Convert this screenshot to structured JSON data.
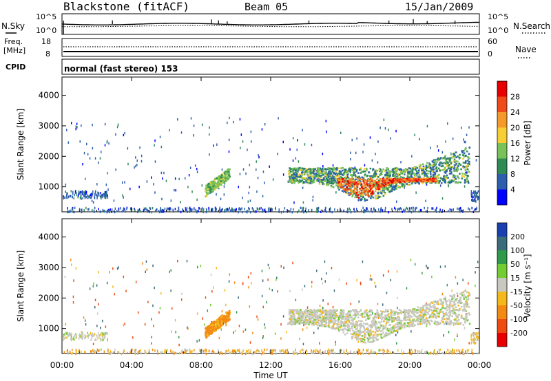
{
  "header": {
    "station": "Blackstone (fitACF)",
    "beam": "Beam 05",
    "date": "15/Jan/2009"
  },
  "strip_labels": {
    "nsky": "N.Sky",
    "nsky_top": "10^5",
    "nsky_bottom": "10^0",
    "nsearch": "N.Search",
    "nsearch_top": "10^5",
    "nsearch_bottom": "10^0",
    "freq_line1": "Freq.",
    "freq_line2": "[MHz]",
    "freq_top": "18",
    "freq_bottom": "8",
    "nave": "Nave",
    "nave_top": "60",
    "nave_bottom": "0",
    "cpid": "CPID",
    "program": "normal (fast stereo) 153"
  },
  "chart_data": [
    {
      "type": "heatmap",
      "parameter": "power",
      "ylabel": "Slant Range [km]",
      "xlabel": "",
      "x_tick_labels": [
        "00:00",
        "04:00",
        "08:00",
        "12:00",
        "16:00",
        "20:00",
        "00:00"
      ],
      "x_ticks_hours": [
        0,
        4,
        8,
        12,
        16,
        20,
        24
      ],
      "y_tick_labels": [
        "1000",
        "2000",
        "3000",
        "4000"
      ],
      "y_ticks": [
        1000,
        2000,
        3000,
        4000
      ],
      "ylim": [
        180,
        4600
      ],
      "xlim_hours": [
        0,
        24
      ],
      "colorbar": {
        "label": "Power [dB]",
        "tick_labels": [
          "4",
          "8",
          "12",
          "16",
          "20",
          "24",
          "28"
        ],
        "colors": [
          "#0000ff",
          "#2d5fae",
          "#2f8a56",
          "#79c25a",
          "#f7cf35",
          "#f49a2a",
          "#f04a1a",
          "#e60000"
        ]
      },
      "echo_regions": [
        {
          "name": "scattered ionospheric scatter",
          "t_start": 0.0,
          "t_end": 23.9,
          "r_start": 500,
          "r_end": 3300,
          "power_db": 6
        },
        {
          "name": "near-range band",
          "t_start": 0.0,
          "t_end": 24.0,
          "r_start": 200,
          "r_end": 350,
          "power_db": 6
        },
        {
          "name": "early range band",
          "t_start": 0.0,
          "t_end": 2.6,
          "r_start": 650,
          "r_end": 900,
          "power_db": 6
        },
        {
          "name": "08 UT echo",
          "t_start": 8.2,
          "t_end": 9.6,
          "r_start": 700,
          "r_end": 1500,
          "power_db": 14
        },
        {
          "name": "main evening echo",
          "t_start": 13.0,
          "t_end": 23.4,
          "r_start": 500,
          "r_end": 2300,
          "power_db": 18
        },
        {
          "name": "main echo core",
          "t_start": 15.8,
          "t_end": 21.5,
          "r_start": 650,
          "r_end": 1300,
          "power_db": 26
        },
        {
          "name": "late echo",
          "t_start": 23.5,
          "t_end": 24.0,
          "r_start": 550,
          "r_end": 900,
          "power_db": 6
        }
      ]
    },
    {
      "type": "heatmap",
      "parameter": "velocity",
      "ylabel": "Slant Range [km]",
      "xlabel": "Time UT",
      "x_tick_labels": [
        "00:00",
        "04:00",
        "08:00",
        "12:00",
        "16:00",
        "20:00",
        "00:00"
      ],
      "x_ticks_hours": [
        0,
        4,
        8,
        12,
        16,
        20,
        24
      ],
      "y_tick_labels": [
        "1000",
        "2000",
        "3000",
        "4000"
      ],
      "y_ticks": [
        1000,
        2000,
        3000,
        4000
      ],
      "ylim": [
        180,
        4600
      ],
      "xlim_hours": [
        0,
        24
      ],
      "colorbar": {
        "label": "Velocity [m s⁻¹]",
        "tick_labels": [
          "200",
          "100",
          "50",
          "15",
          "-15",
          "-50",
          "-100",
          "-200"
        ],
        "colors": [
          "#1a3fb0",
          "#3a6c7a",
          "#2e9a4a",
          "#74cc33",
          "#c8c8c0",
          "#f5b81a",
          "#f28a14",
          "#ef4a10",
          "#e80000"
        ]
      },
      "echo_regions": [
        {
          "name": "scattered ionospheric scatter",
          "t_start": 0.0,
          "t_end": 23.9,
          "r_start": 500,
          "r_end": 3300,
          "velocity": -20
        },
        {
          "name": "near-range band",
          "t_start": 0.0,
          "t_end": 24.0,
          "r_start": 200,
          "r_end": 350,
          "velocity": -30
        },
        {
          "name": "early range band",
          "t_start": 0.0,
          "t_end": 2.6,
          "r_start": 650,
          "r_end": 900,
          "velocity": 0
        },
        {
          "name": "08 UT echo",
          "t_start": 8.2,
          "t_end": 9.6,
          "r_start": 700,
          "r_end": 1500,
          "velocity": -50
        },
        {
          "name": "main evening echo",
          "t_start": 13.0,
          "t_end": 23.4,
          "r_start": 500,
          "r_end": 2300,
          "velocity": 0
        },
        {
          "name": "late echo",
          "t_start": 23.5,
          "t_end": 24.0,
          "r_start": 550,
          "r_end": 900,
          "velocity": -20
        }
      ]
    }
  ]
}
